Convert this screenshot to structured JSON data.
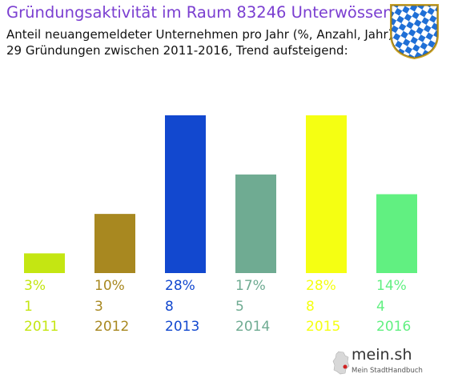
{
  "header": {
    "title": "Gründungsaktivität im Raum 83246 Unterwössen",
    "subtitle_line1": "Anteil neuangemeldeter Unternehmen pro Jahr (%, Anzahl, Jahr)",
    "subtitle_line2": "29 Gründungen zwischen 2011-2016, Trend aufsteigend:"
  },
  "branding": {
    "logo_text": "mein.sh",
    "logo_tagline": "Mein StadtHandbuch"
  },
  "chart_data": {
    "type": "bar",
    "categories": [
      "2011",
      "2012",
      "2013",
      "2014",
      "2015",
      "2016"
    ],
    "percent_labels": [
      "3%",
      "10%",
      "28%",
      "17%",
      "28%",
      "14%"
    ],
    "counts": [
      1,
      3,
      8,
      5,
      8,
      4
    ],
    "colors": [
      "#c4e612",
      "#a88820",
      "#1248cf",
      "#6fab92",
      "#f5ff12",
      "#61f081"
    ],
    "title": "Gründungsaktivität im Raum 83246 Unterwössen",
    "xlabel": "",
    "ylabel": "",
    "ylim": [
      0,
      8
    ],
    "grid": false,
    "legend": "none"
  }
}
